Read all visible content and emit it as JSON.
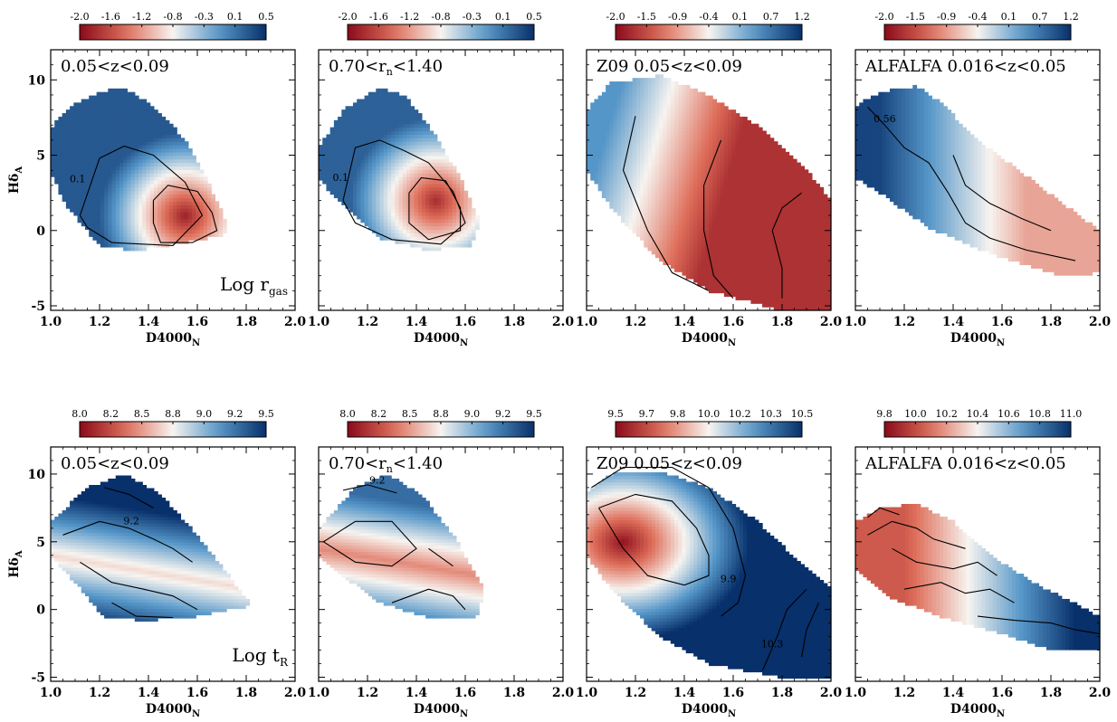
{
  "chart_data": {
    "type": "heatmap",
    "xlabel": "D4000",
    "xlabel_sub": "N",
    "ylabel": "Hδ",
    "ylabel_sub": "A",
    "xlim": [
      1.0,
      2.0
    ],
    "ylim": [
      -5.3,
      12
    ],
    "xticks": [
      "1.0",
      "1.2",
      "1.4",
      "1.6",
      "1.8",
      "2.0"
    ],
    "yticks": [
      "-5",
      "0",
      "5",
      "10"
    ],
    "colormap": {
      "low": "#8b0a1a",
      "mid": "#f7f4f0",
      "high": "#08306b"
    },
    "rows": [
      {
        "quantity_main": "Log r",
        "quantity_sub": "gas",
        "panels": [
          {
            "label": "0.05<z<0.09",
            "colorbar_ticks": [
              "-2.0",
              "-1.6",
              "-1.2",
              "-0.8",
              "-0.3",
              "0.1",
              "0.5"
            ],
            "contour_labels": [
              "0.1"
            ],
            "data_min": -2.0,
            "data_max": 0.5
          },
          {
            "label_main": "0.70<r",
            "label_sub": "n",
            "label_tail": "<1.40",
            "colorbar_ticks": [
              "-2.0",
              "-1.6",
              "-1.2",
              "-0.8",
              "-0.3",
              "0.1",
              "0.5"
            ],
            "contour_labels": [
              "0.1"
            ],
            "data_min": -2.0,
            "data_max": 0.5
          },
          {
            "label": "Z09 0.05<z<0.09",
            "colorbar_ticks": [
              "-2.0",
              "-1.5",
              "-0.9",
              "-0.4",
              "0.1",
              "0.7",
              "1.2"
            ],
            "contour_labels": [],
            "data_min": -2.0,
            "data_max": 1.2
          },
          {
            "label": "ALFALFA 0.016<z<0.05",
            "colorbar_ticks": [
              "-2.0",
              "-1.5",
              "-0.9",
              "-0.4",
              "0.1",
              "0.7",
              "1.2"
            ],
            "contour_labels": [
              "0.56"
            ],
            "data_min": -2.0,
            "data_max": 1.2
          }
        ]
      },
      {
        "quantity_main": "Log t",
        "quantity_sub": "R",
        "panels": [
          {
            "label": "0.05<z<0.09",
            "colorbar_ticks": [
              "8.0",
              "8.2",
              "8.5",
              "8.8",
              "9.0",
              "9.2",
              "9.5"
            ],
            "contour_labels": [
              "9.2"
            ],
            "data_min": 8.0,
            "data_max": 9.5
          },
          {
            "label_main": "0.70<r",
            "label_sub": "n",
            "label_tail": "<1.40",
            "colorbar_ticks": [
              "8.0",
              "8.2",
              "8.5",
              "8.8",
              "9.0",
              "9.2",
              "9.5"
            ],
            "contour_labels": [
              "9.2"
            ],
            "data_min": 8.0,
            "data_max": 9.5
          },
          {
            "label": "Z09 0.05<z<0.09",
            "colorbar_ticks": [
              "9.5",
              "9.7",
              "9.8",
              "10.0",
              "10.2",
              "10.3",
              "10.5"
            ],
            "contour_labels": [
              "9.9",
              "10.3"
            ],
            "data_min": 9.5,
            "data_max": 10.5
          },
          {
            "label": "ALFALFA 0.016<z<0.05",
            "colorbar_ticks": [
              "9.8",
              "10.0",
              "10.2",
              "10.4",
              "10.6",
              "10.8",
              "11.0"
            ],
            "contour_labels": [],
            "data_min": 9.8,
            "data_max": 11.0
          }
        ]
      }
    ]
  }
}
